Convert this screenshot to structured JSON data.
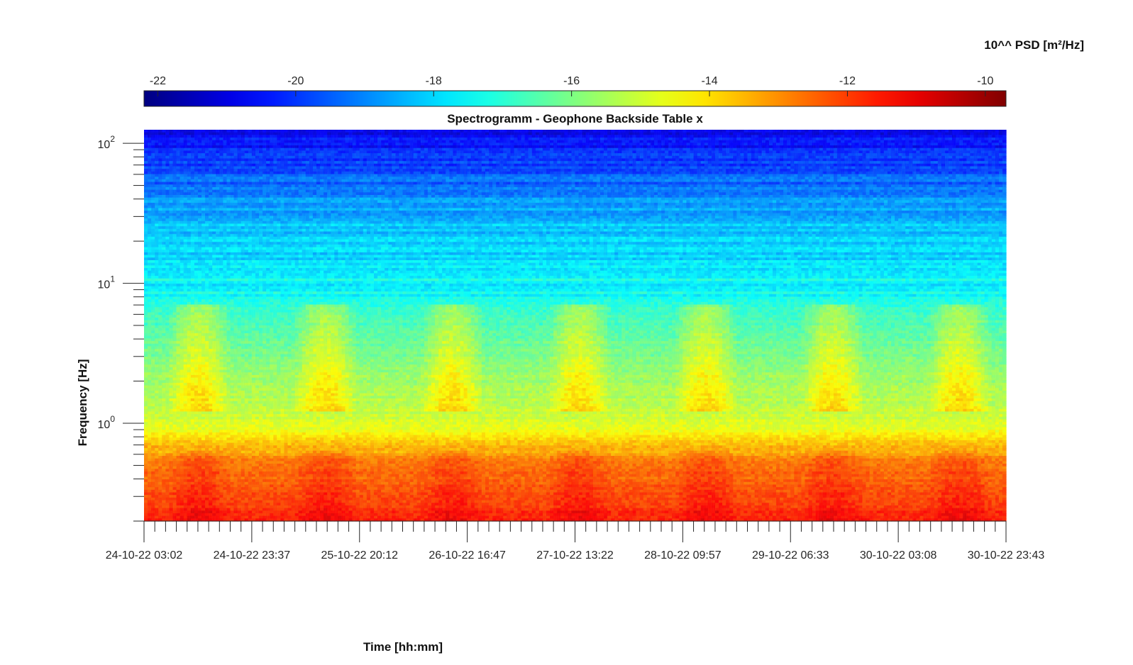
{
  "chart_data": {
    "type": "heatmap",
    "title": "Spectrogramm - Geophone Backside Table x",
    "xlabel": "Time [hh:mm]",
    "ylabel": "Frequency [Hz]",
    "yscale": "log",
    "ylim": [
      0.2,
      125
    ],
    "x_tick_labels": [
      "24-10-22 03:02",
      "24-10-22 23:37",
      "25-10-22 20:12",
      "26-10-22 16:47",
      "27-10-22 13:22",
      "28-10-22 09:57",
      "29-10-22 06:33",
      "30-10-22 03:08",
      "30-10-22 23:43"
    ],
    "y_ticks": [
      {
        "value": 1,
        "base": "10",
        "exp": "0"
      },
      {
        "value": 10,
        "base": "10",
        "exp": "1"
      },
      {
        "value": 100,
        "base": "10",
        "exp": "2"
      }
    ],
    "colorbar": {
      "label": "10^^ PSD [m²/Hz]",
      "range": [
        -22.2,
        -9.7
      ],
      "ticks": [
        "-22",
        "-20",
        "-18",
        "-16",
        "-14",
        "-12",
        "-10"
      ],
      "tick_values": [
        -22,
        -20,
        -18,
        -16,
        -14,
        -12,
        -10
      ],
      "colormap": "jet",
      "location": "top"
    },
    "psd_profile": {
      "description_levels_log10": [
        {
          "freq": 0.2,
          "level": -11.4
        },
        {
          "freq": 0.55,
          "level": -12.6
        },
        {
          "freq": 0.8,
          "level": -14.2
        },
        {
          "freq": 1.1,
          "level": -15.0
        },
        {
          "freq": 2.0,
          "level": -15.6
        },
        {
          "freq": 5.0,
          "level": -16.6
        },
        {
          "freq": 10.0,
          "level": -17.5
        },
        {
          "freq": 30.0,
          "level": -18.5
        },
        {
          "freq": 60.0,
          "level": -19.6
        },
        {
          "freq": 125.0,
          "level": -21.0
        }
      ]
    }
  }
}
